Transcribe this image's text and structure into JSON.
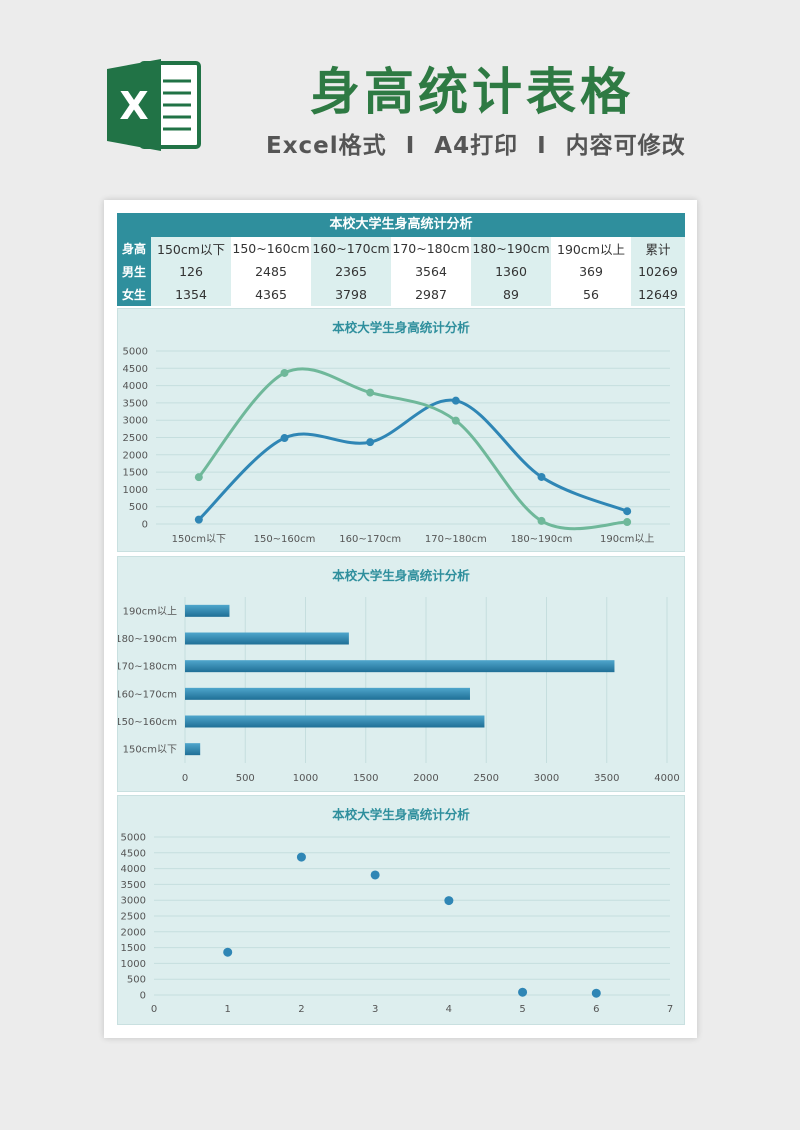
{
  "header": {
    "logo_letter": "X",
    "title": "身高统计表格",
    "subtitle_parts": [
      "Excel格式",
      "I",
      "A4打印",
      "I",
      "内容可修改"
    ]
  },
  "table": {
    "title": "本校大学生身高统计分析",
    "row_labels": [
      "身高",
      "男生",
      "女生"
    ],
    "columns": [
      "150cm以下",
      "150~160cm",
      "160~170cm",
      "170~180cm",
      "180~190cm",
      "190cm以上"
    ],
    "total_label": "累计",
    "male": [
      126,
      2485,
      2365,
      3564,
      1360,
      369
    ],
    "female": [
      1354,
      4365,
      3798,
      2987,
      89,
      56
    ],
    "male_total": 10269,
    "female_total": 12649
  },
  "colors": {
    "male": "#2f86b5",
    "female": "#6fb89a",
    "accent": "#2f8f9d"
  },
  "chart_data": [
    {
      "type": "line",
      "title": "本校大学生身高统计分析",
      "categories": [
        "150cm以下",
        "150~160cm",
        "160~170cm",
        "170~180cm",
        "180~190cm",
        "190cm以上"
      ],
      "series": [
        {
          "name": "男生",
          "values": [
            126,
            2485,
            2365,
            3564,
            1360,
            369
          ]
        },
        {
          "name": "女生",
          "values": [
            1354,
            4365,
            3798,
            2987,
            89,
            56
          ]
        }
      ],
      "yticks": [
        0,
        500,
        1000,
        1500,
        2000,
        2500,
        3000,
        3500,
        4000,
        4500,
        5000
      ],
      "ylim": [
        0,
        5000
      ]
    },
    {
      "type": "bar",
      "orientation": "horizontal",
      "title": "本校大学生身高统计分析",
      "categories": [
        "150cm以下",
        "150~160cm",
        "160~170cm",
        "170~180cm",
        "180~190cm",
        "190cm以上"
      ],
      "values": [
        126,
        2485,
        2365,
        3564,
        1360,
        369
      ],
      "xticks": [
        0,
        500,
        1000,
        1500,
        2000,
        2500,
        3000,
        3500,
        4000
      ],
      "xlim": [
        0,
        4000
      ]
    },
    {
      "type": "scatter",
      "title": "本校大学生身高统计分析",
      "x": [
        1,
        2,
        3,
        4,
        5,
        6
      ],
      "y": [
        1354,
        4365,
        3798,
        2987,
        89,
        56
      ],
      "xticks": [
        0,
        1,
        2,
        3,
        4,
        5,
        6,
        7
      ],
      "yticks": [
        0,
        500,
        1000,
        1500,
        2000,
        2500,
        3000,
        3500,
        4000,
        4500,
        5000
      ],
      "xlim": [
        0,
        7
      ],
      "ylim": [
        0,
        5000
      ]
    }
  ]
}
